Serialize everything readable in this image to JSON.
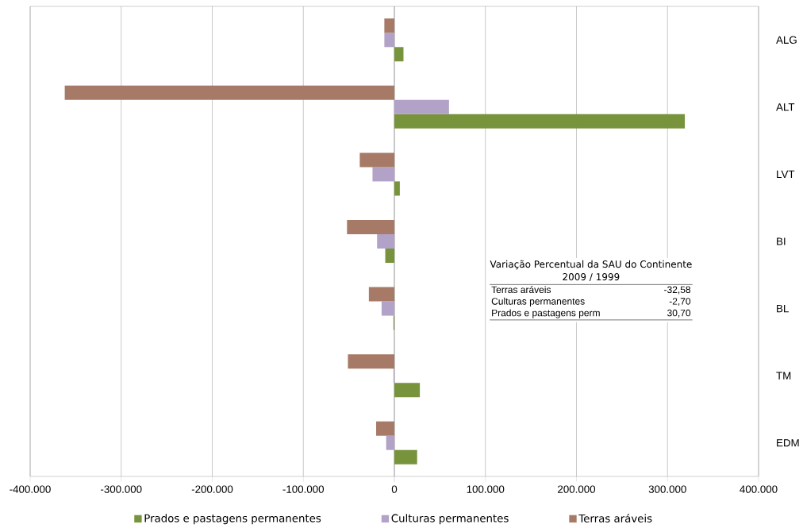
{
  "chart_data": {
    "type": "bar",
    "orientation": "horizontal",
    "categories": [
      "ALG",
      "ALT",
      "LVT",
      "BI",
      "BL",
      "TM",
      "EDM"
    ],
    "series": [
      {
        "name": "Prados e pastagens permanentes",
        "color": "#77933c",
        "values": [
          10000,
          319000,
          6000,
          -10000,
          -1000,
          28000,
          25000
        ]
      },
      {
        "name": "Culturas permanentes",
        "color": "#b3a2c7",
        "values": [
          -11000,
          60000,
          -24000,
          -19000,
          -14000,
          -1000,
          -9000
        ]
      },
      {
        "name": "Terras aráveis",
        "color": "#a67a66",
        "values": [
          -11000,
          -362000,
          -38000,
          -52000,
          -28000,
          -51000,
          -20000
        ]
      }
    ],
    "xlim": [
      -400000,
      400000
    ],
    "xticks": [
      {
        "value": -400000,
        "label": "-400.000"
      },
      {
        "value": -300000,
        "label": "-300.000"
      },
      {
        "value": -200000,
        "label": "-200.000"
      },
      {
        "value": -100000,
        "label": "-100.000"
      },
      {
        "value": 0,
        "label": "0"
      },
      {
        "value": 100000,
        "label": "100.000"
      },
      {
        "value": 200000,
        "label": "200.000"
      },
      {
        "value": 300000,
        "label": "300.000"
      },
      {
        "value": 400000,
        "label": "400.000"
      }
    ],
    "grid": "x",
    "legend": "bottom",
    "annotations": [
      "Variação Percentual da SAU do Continente",
      "2009 / 1999",
      "Terras aráveis",
      "-32,58",
      "Culturas permanentes",
      "-2,70",
      "Prados e pastagens perm",
      "30,70"
    ]
  }
}
